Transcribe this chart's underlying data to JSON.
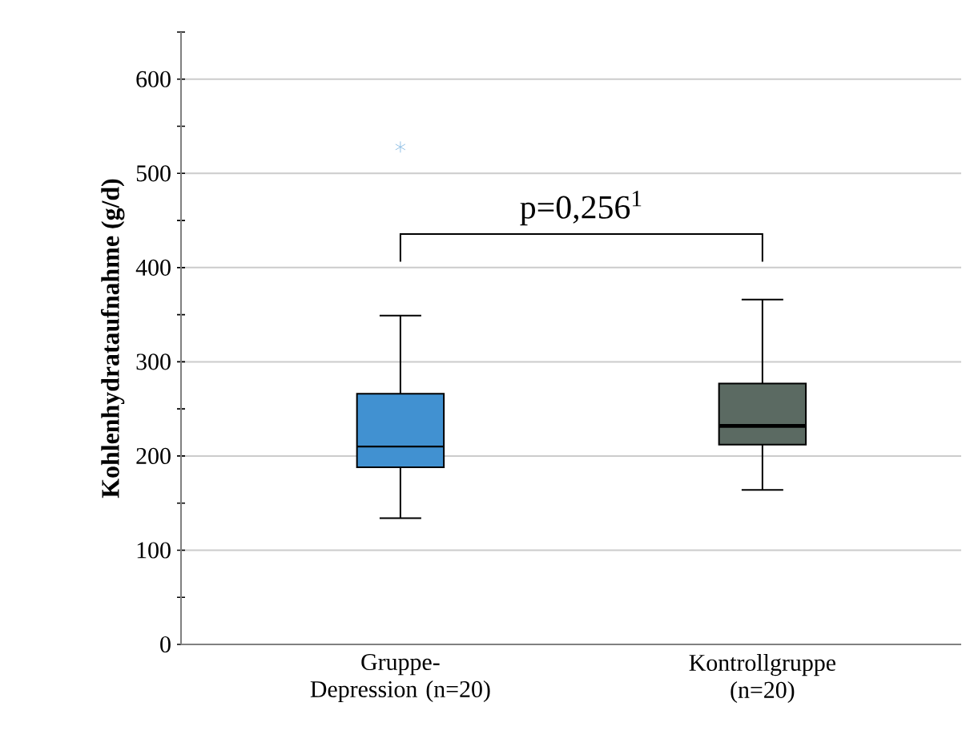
{
  "chart_data": {
    "type": "box",
    "ylabel": "Kohlenhydrataufnahme (g/d)",
    "categories": [
      "Gruppe-Depression (n=20)",
      "Kontrollgruppe (n=20)"
    ],
    "colors": [
      "#4191d1",
      "#5b6a62"
    ],
    "boxes": [
      {
        "low": 134,
        "q1": 188,
        "median": 210,
        "q3": 266,
        "high": 349,
        "outliers": [
          528
        ]
      },
      {
        "low": 164,
        "q1": 212,
        "median": 232,
        "q3": 277,
        "high": 366
      }
    ],
    "ylim": [
      0,
      650
    ],
    "yticks": [
      0,
      {
        "value": 50,
        "label": null
      },
      100,
      {
        "value": 150,
        "label": null
      },
      200,
      {
        "value": 250,
        "label": null
      },
      300,
      {
        "value": 350,
        "label": null
      },
      400,
      {
        "value": 450,
        "label": null
      },
      500,
      {
        "value": 550,
        "label": null
      },
      600,
      {
        "value": 650,
        "label": null
      }
    ],
    "grid": "y",
    "annotations": [
      "p=0,256$^{1}$"
    ]
  }
}
